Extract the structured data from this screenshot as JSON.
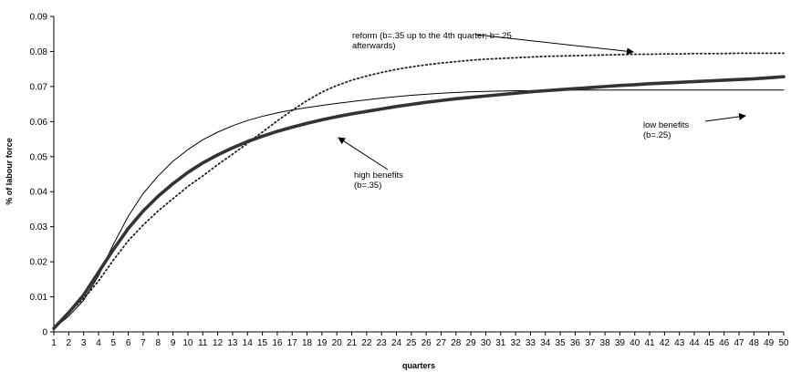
{
  "chart_data": {
    "type": "line",
    "title": "",
    "xlabel": "quarters",
    "ylabel": "% of labour force",
    "xlim": [
      1,
      50
    ],
    "ylim": [
      0,
      0.09
    ],
    "yticks": [
      "0",
      "0.01",
      "0.02",
      "0.03",
      "0.04",
      "0.05",
      "0.06",
      "0.07",
      "0.08",
      "0.09"
    ],
    "x": [
      1,
      2,
      3,
      4,
      5,
      6,
      7,
      8,
      9,
      10,
      11,
      12,
      13,
      14,
      15,
      16,
      17,
      18,
      19,
      20,
      21,
      22,
      23,
      24,
      25,
      26,
      27,
      28,
      29,
      30,
      31,
      32,
      33,
      34,
      35,
      36,
      37,
      38,
      39,
      40,
      41,
      42,
      43,
      44,
      45,
      46,
      47,
      48,
      49,
      50
    ],
    "grid": false,
    "legend": "none",
    "series": [
      {
        "style": "thick-solid",
        "color": "#333333",
        "values": [
          0.001,
          0.0055,
          0.0105,
          0.017,
          0.0235,
          0.0295,
          0.0345,
          0.0387,
          0.0423,
          0.0455,
          0.0482,
          0.0505,
          0.0525,
          0.0543,
          0.0558,
          0.0572,
          0.0584,
          0.0595,
          0.0605,
          0.0614,
          0.0622,
          0.0629,
          0.0636,
          0.0643,
          0.0649,
          0.0655,
          0.066,
          0.0665,
          0.0669,
          0.0673,
          0.0677,
          0.0681,
          0.0685,
          0.0688,
          0.0691,
          0.0694,
          0.0697,
          0.07,
          0.0703,
          0.0705,
          0.0708,
          0.071,
          0.0712,
          0.0714,
          0.0716,
          0.0718,
          0.072,
          0.0722,
          0.0725,
          0.0728
        ]
      },
      {
        "style": "thin-solid",
        "color": "#000000",
        "values": [
          0.001,
          0.0045,
          0.009,
          0.016,
          0.025,
          0.033,
          0.0395,
          0.0445,
          0.0487,
          0.052,
          0.0548,
          0.057,
          0.0588,
          0.0603,
          0.0615,
          0.0625,
          0.0633,
          0.064,
          0.0646,
          0.0652,
          0.0657,
          0.0662,
          0.0667,
          0.0671,
          0.0675,
          0.0678,
          0.0681,
          0.0683,
          0.0685,
          0.0686,
          0.0687,
          0.0688,
          0.0688,
          0.0689,
          0.0689,
          0.069,
          0.069,
          0.069,
          0.069,
          0.069,
          0.069,
          0.069,
          0.069,
          0.069,
          0.069,
          0.069,
          0.069,
          0.069,
          0.069,
          0.069
        ]
      },
      {
        "style": "dotted",
        "color": "#222222",
        "values": [
          0.001,
          0.0055,
          0.0095,
          0.0145,
          0.0205,
          0.026,
          0.0305,
          0.0345,
          0.038,
          0.0415,
          0.0445,
          0.0477,
          0.0507,
          0.0538,
          0.057,
          0.0602,
          0.0632,
          0.066,
          0.0684,
          0.0703,
          0.0718,
          0.073,
          0.074,
          0.0749,
          0.0756,
          0.0762,
          0.0767,
          0.0771,
          0.0775,
          0.0778,
          0.078,
          0.0782,
          0.0784,
          0.0786,
          0.0787,
          0.0788,
          0.0789,
          0.079,
          0.0791,
          0.0792,
          0.0792,
          0.0793,
          0.0793,
          0.0794,
          0.0794,
          0.0794,
          0.0795,
          0.0795,
          0.0795,
          0.0795
        ]
      }
    ],
    "annotations": [
      {
        "id": "reform",
        "lines": [
          "reform (b=.35 up to the 4th quarter; b=.25",
          "afterwards)"
        ],
        "target_x": 40,
        "target_y": 0.0792
      },
      {
        "id": "low",
        "lines": [
          "low benefits",
          "(b=.25)"
        ],
        "target_x": 47,
        "target_y": 0.069
      },
      {
        "id": "high",
        "lines": [
          "high benefits",
          "(b=.35)"
        ],
        "target_x": 21,
        "target_y": 0.0622
      }
    ]
  }
}
